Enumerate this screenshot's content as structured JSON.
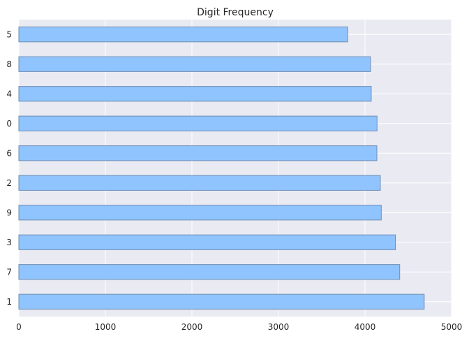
{
  "chart_data": {
    "type": "bar",
    "orientation": "horizontal",
    "title": "Digit Frequency",
    "xlabel": "",
    "ylabel": "",
    "categories": [
      "5",
      "8",
      "4",
      "0",
      "6",
      "2",
      "9",
      "3",
      "7",
      "1"
    ],
    "values": [
      3800,
      4063,
      4072,
      4139,
      4137,
      4177,
      4188,
      4351,
      4401,
      4684
    ],
    "xlim": [
      0,
      5000
    ],
    "xticks": [
      "0",
      "1000",
      "2000",
      "3000",
      "4000",
      "5000"
    ],
    "grid": true,
    "legend": "none",
    "colors": {
      "bar_fill": "#90c4fe",
      "bar_edge": "#6d8db5",
      "plot_background": "#eaeaf2",
      "grid": "#ffffff",
      "text": "#262626"
    }
  }
}
